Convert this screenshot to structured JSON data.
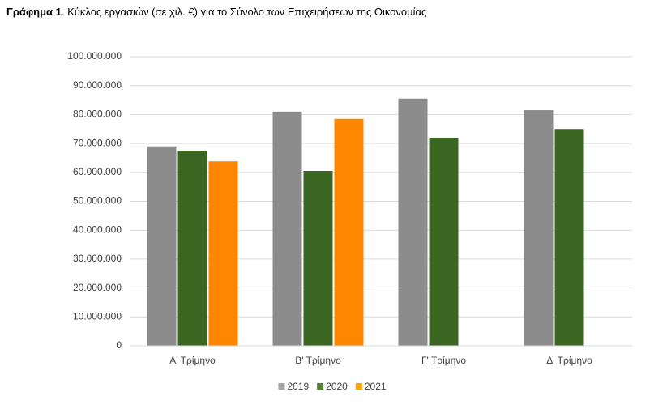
{
  "chart_data": {
    "type": "bar",
    "figure_label": "Γράφημα 1",
    "title": ". Κύκλος εργασιών (σε χιλ. €) για το Σύνολο των Επιχειρήσεων της Οικονομίας",
    "categories": [
      "Α' Τρίμηνο",
      "Β' Τρίμηνο",
      "Γ' Τρίμηνο",
      "Δ' Τρίμηνο"
    ],
    "series": [
      {
        "name": "2019",
        "color": "#a6a6a6",
        "values": [
          69000000,
          81000000,
          85500000,
          81500000
        ]
      },
      {
        "name": "2020",
        "color": "#548235",
        "values": [
          67500000,
          60500000,
          72000000,
          75000000
        ]
      },
      {
        "name": "2021",
        "color": "#ffa200",
        "values": [
          63800000,
          78500000,
          null,
          null
        ]
      }
    ],
    "ylim": [
      0,
      100000000
    ],
    "yticks": [
      0,
      {
        "value": 10000000,
        "label": "10.000.000"
      },
      {
        "value": 20000000,
        "label": "20.000.000"
      },
      {
        "value": 30000000,
        "label": "30.000.000"
      },
      {
        "value": 40000000,
        "label": "40.000.000"
      },
      {
        "value": 50000000,
        "label": "50.000.000"
      },
      {
        "value": 60000000,
        "label": "60.000.000"
      },
      {
        "value": 70000000,
        "label": "70.000.000"
      },
      {
        "value": 80000000,
        "label": "80.000.000"
      },
      {
        "value": 90000000,
        "label": "90.000.000"
      },
      {
        "value": 100000000,
        "label": "100.000.000"
      }
    ],
    "grid": true,
    "legend": "bottom"
  }
}
